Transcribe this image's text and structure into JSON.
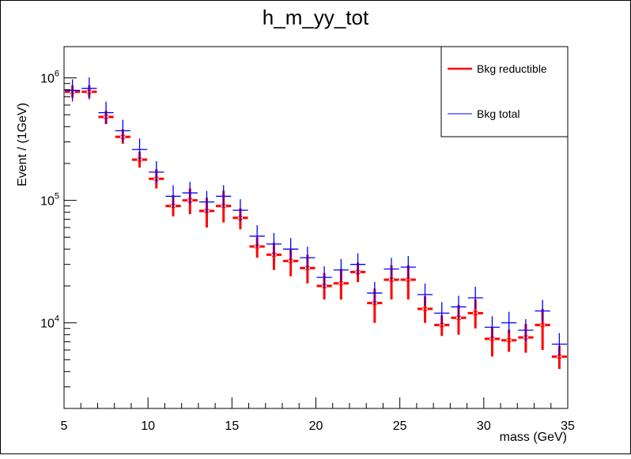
{
  "chart_data": {
    "type": "scatter",
    "title": "h_m_yy_tot",
    "xlabel": "mass (GeV)",
    "ylabel": "Event / (1GeV)",
    "xlim": [
      5,
      35
    ],
    "ylim": [
      2000,
      1800000
    ],
    "log_y": true,
    "grid": false,
    "legend_position": "top-right",
    "x_ticks": [
      "5",
      "10",
      "15",
      "20",
      "25",
      "30",
      "35"
    ],
    "y_ticks": [
      {
        "value": 10000,
        "base": "10",
        "exp": "4"
      },
      {
        "value": 100000,
        "base": "10",
        "exp": "5"
      },
      {
        "value": 1000000,
        "base": "10",
        "exp": "6"
      }
    ],
    "series": [
      {
        "name": "Bkg reductible",
        "color": "#ff0000",
        "x": [
          5.5,
          6.5,
          7.5,
          8.5,
          9.5,
          10.5,
          11.5,
          12.5,
          13.5,
          14.5,
          15.5,
          16.5,
          17.5,
          18.5,
          19.5,
          20.5,
          21.5,
          22.5,
          23.5,
          24.5,
          25.5,
          26.5,
          27.5,
          28.5,
          29.5,
          30.5,
          31.5,
          32.5,
          33.5,
          34.5
        ],
        "y": [
          770000,
          770000,
          480000,
          330000,
          215000,
          150000,
          90000,
          100000,
          82000,
          90000,
          72000,
          42000,
          36000,
          32000,
          28000,
          20000,
          21000,
          26000,
          14500,
          22500,
          22500,
          13000,
          9600,
          11000,
          12000,
          7400,
          7200,
          7600,
          9600,
          5300
        ],
        "y_low": [
          690000,
          690000,
          420000,
          290000,
          185000,
          125000,
          74000,
          77000,
          60000,
          66000,
          58000,
          34000,
          27000,
          24000,
          21000,
          15500,
          15500,
          21500,
          10000,
          15500,
          15500,
          10000,
          7800,
          8000,
          9000,
          5300,
          5800,
          5700,
          6000,
          4200
        ],
        "y_high": [
          870000,
          870000,
          540000,
          380000,
          250000,
          180000,
          110000,
          125000,
          105000,
          120000,
          86000,
          50000,
          45000,
          40000,
          36000,
          25500,
          27500,
          31000,
          19000,
          29500,
          29500,
          16500,
          11500,
          14000,
          15500,
          9300,
          8800,
          9800,
          13000,
          6500
        ]
      },
      {
        "name": "Bkg total",
        "color": "#0000ff",
        "x": [
          5.5,
          6.5,
          7.5,
          8.5,
          9.5,
          10.5,
          11.5,
          12.5,
          13.5,
          14.5,
          15.5,
          16.5,
          17.5,
          18.5,
          19.5,
          20.5,
          21.5,
          22.5,
          23.5,
          24.5,
          25.5,
          26.5,
          27.5,
          28.5,
          29.5,
          30.5,
          31.5,
          32.5,
          33.5,
          34.5
        ],
        "y": [
          790000,
          820000,
          520000,
          370000,
          260000,
          170000,
          108000,
          115000,
          97000,
          108000,
          83000,
          51000,
          44000,
          40000,
          34000,
          23500,
          27000,
          30000,
          17500,
          27500,
          28500,
          17000,
          12000,
          13500,
          16000,
          9200,
          10000,
          8700,
          12500,
          6700
        ]
      }
    ]
  }
}
